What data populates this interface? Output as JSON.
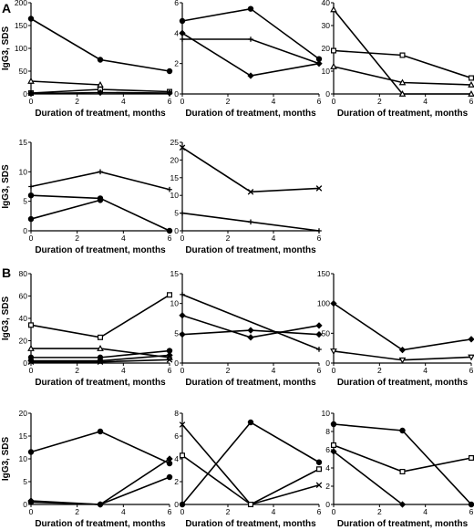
{
  "panel_labels": [
    "A",
    "B"
  ],
  "chart_data": [
    {
      "type": "line",
      "panel": "A",
      "ylabel": "IgG3, SDS",
      "xlabel": "Duration of treatment, months",
      "x": [
        0,
        3,
        6
      ],
      "xticks": [
        0,
        2,
        4,
        6
      ],
      "xlim": [
        0,
        6
      ],
      "ylim": [
        0,
        200
      ],
      "yticks": [
        0,
        50,
        100,
        150,
        200
      ],
      "series": [
        {
          "marker": "circle",
          "values": [
            165,
            75,
            50
          ]
        },
        {
          "marker": "triangle",
          "values": [
            28,
            20,
            null
          ]
        },
        {
          "marker": "square",
          "values": [
            2,
            10,
            5
          ]
        },
        {
          "marker": "diamond",
          "values": [
            1,
            3,
            2
          ]
        }
      ]
    },
    {
      "type": "line",
      "panel": "A",
      "xlabel": "Duration of treatment, months",
      "x": [
        0,
        3,
        6
      ],
      "xticks": [
        0,
        2,
        4,
        6
      ],
      "xlim": [
        0,
        6
      ],
      "ylim": [
        0,
        6
      ],
      "yticks": [
        0,
        2,
        4,
        6
      ],
      "series": [
        {
          "marker": "circle",
          "values": [
            4.8,
            5.6,
            2.3
          ]
        },
        {
          "marker": "plus",
          "values": [
            3.6,
            3.6,
            2.0
          ]
        },
        {
          "marker": "diamond",
          "values": [
            4.0,
            1.2,
            2.0
          ]
        }
      ]
    },
    {
      "type": "line",
      "panel": "A",
      "xlabel": "Duration of treatment, months",
      "x": [
        0,
        3,
        6
      ],
      "xticks": [
        0,
        2,
        4,
        6
      ],
      "xlim": [
        0,
        6
      ],
      "ylim": [
        0,
        40
      ],
      "yticks": [
        0,
        10,
        20,
        30,
        40
      ],
      "series": [
        {
          "marker": "triangle",
          "values": [
            37,
            0,
            0
          ]
        },
        {
          "marker": "square",
          "values": [
            19,
            17,
            7
          ]
        },
        {
          "marker": "triangle",
          "values": [
            12,
            5,
            4
          ]
        }
      ]
    },
    {
      "type": "line",
      "panel": "A",
      "ylabel": "IgG3, SDS",
      "xlabel": "Duration of treatment, months",
      "x": [
        0,
        3,
        6
      ],
      "xticks": [
        0,
        2,
        4,
        6
      ],
      "xlim": [
        0,
        6
      ],
      "ylim": [
        0,
        15
      ],
      "yticks": [
        0,
        5,
        10,
        15
      ],
      "series": [
        {
          "marker": "plus",
          "values": [
            7.5,
            10,
            7
          ]
        },
        {
          "marker": "circle",
          "values": [
            6,
            5.5,
            0
          ]
        },
        {
          "marker": "circle",
          "values": [
            2,
            5.2,
            null
          ]
        }
      ]
    },
    {
      "type": "line",
      "panel": "A",
      "xlabel": "Duration of treatment, months",
      "x": [
        0,
        3,
        6
      ],
      "xticks": [
        0,
        2,
        4,
        6
      ],
      "xlim": [
        0,
        6
      ],
      "ylim": [
        0,
        25
      ],
      "yticks": [
        0,
        5,
        10,
        15,
        20,
        25
      ],
      "series": [
        {
          "marker": "x",
          "values": [
            23.5,
            11,
            12
          ]
        },
        {
          "marker": "plus",
          "values": [
            5,
            2.5,
            0
          ]
        }
      ]
    },
    {
      "type": "line",
      "panel": "B",
      "ylabel": "IgG3, SDS",
      "xlabel": "Duration of treatment, months",
      "x": [
        0,
        3,
        6
      ],
      "xticks": [
        0,
        2,
        4,
        6
      ],
      "xlim": [
        0,
        6
      ],
      "ylim": [
        0,
        80
      ],
      "yticks": [
        0,
        20,
        40,
        60,
        80
      ],
      "series": [
        {
          "marker": "square",
          "values": [
            34,
            23,
            61
          ]
        },
        {
          "marker": "triangle",
          "values": [
            13,
            13,
            5
          ]
        },
        {
          "marker": "circle",
          "values": [
            5,
            5,
            11
          ]
        },
        {
          "marker": "diamond",
          "values": [
            2,
            2,
            7
          ]
        },
        {
          "marker": "x",
          "values": [
            1,
            1,
            3
          ]
        }
      ]
    },
    {
      "type": "line",
      "panel": "B",
      "xlabel": "Duration of treatment, months",
      "x": [
        0,
        3,
        6
      ],
      "xticks": [
        0,
        2,
        4,
        6
      ],
      "xlim": [
        0,
        6
      ],
      "ylim": [
        0,
        15
      ],
      "yticks": [
        0,
        5,
        10,
        15
      ],
      "series": [
        {
          "marker": "plus",
          "values": [
            11.5,
            null,
            2.3
          ]
        },
        {
          "marker": "diamond",
          "values": [
            8,
            4.3,
            6.3
          ]
        },
        {
          "marker": "diamond",
          "values": [
            4.8,
            5.5,
            4.8
          ]
        }
      ]
    },
    {
      "type": "line",
      "panel": "B",
      "xlabel": "Duration of treatment, months",
      "x": [
        0,
        3,
        6
      ],
      "xticks": [
        0,
        2,
        4,
        6
      ],
      "xlim": [
        0,
        6
      ],
      "ylim": [
        0,
        150
      ],
      "yticks": [
        0,
        50,
        100,
        150
      ],
      "series": [
        {
          "marker": "diamond",
          "values": [
            100,
            22,
            40
          ]
        },
        {
          "marker": "triangle-down",
          "values": [
            20,
            5,
            10
          ]
        }
      ]
    },
    {
      "type": "line",
      "panel": "B",
      "ylabel": "IgG3, SDS",
      "xlabel": "Duration of treatment, months",
      "x": [
        0,
        3,
        6
      ],
      "xticks": [
        0,
        2,
        4,
        6
      ],
      "xlim": [
        0,
        6
      ],
      "ylim": [
        0,
        20
      ],
      "yticks": [
        0,
        5,
        10,
        15,
        20
      ],
      "series": [
        {
          "marker": "circle",
          "values": [
            11.5,
            16,
            9
          ]
        },
        {
          "marker": "diamond",
          "values": [
            0.8,
            0,
            10
          ]
        },
        {
          "marker": "circle",
          "values": [
            0.5,
            0,
            6
          ]
        }
      ]
    },
    {
      "type": "line",
      "panel": "B",
      "xlabel": "Duration of treatment, months",
      "x": [
        0,
        3,
        6
      ],
      "xticks": [
        0,
        2,
        4,
        6
      ],
      "xlim": [
        0,
        6
      ],
      "ylim": [
        0,
        8
      ],
      "yticks": [
        0,
        2,
        4,
        6,
        8
      ],
      "series": [
        {
          "marker": "x",
          "values": [
            7,
            0,
            1.7
          ]
        },
        {
          "marker": "square",
          "values": [
            4.3,
            0,
            3.1
          ]
        },
        {
          "marker": "circle",
          "values": [
            0,
            7.2,
            3.7
          ]
        }
      ]
    },
    {
      "type": "line",
      "panel": "B",
      "xlabel": "Duration of treatment, months",
      "x": [
        0,
        3,
        6
      ],
      "xticks": [
        0,
        2,
        4,
        6
      ],
      "xlim": [
        0,
        6
      ],
      "ylim": [
        0,
        10
      ],
      "yticks": [
        0,
        2,
        4,
        6,
        8,
        10
      ],
      "series": [
        {
          "marker": "circle",
          "values": [
            8.8,
            8.1,
            0
          ]
        },
        {
          "marker": "square",
          "values": [
            6.5,
            3.6,
            5.1
          ]
        },
        {
          "marker": "diamond",
          "values": [
            5.8,
            0,
            null
          ]
        }
      ]
    }
  ]
}
